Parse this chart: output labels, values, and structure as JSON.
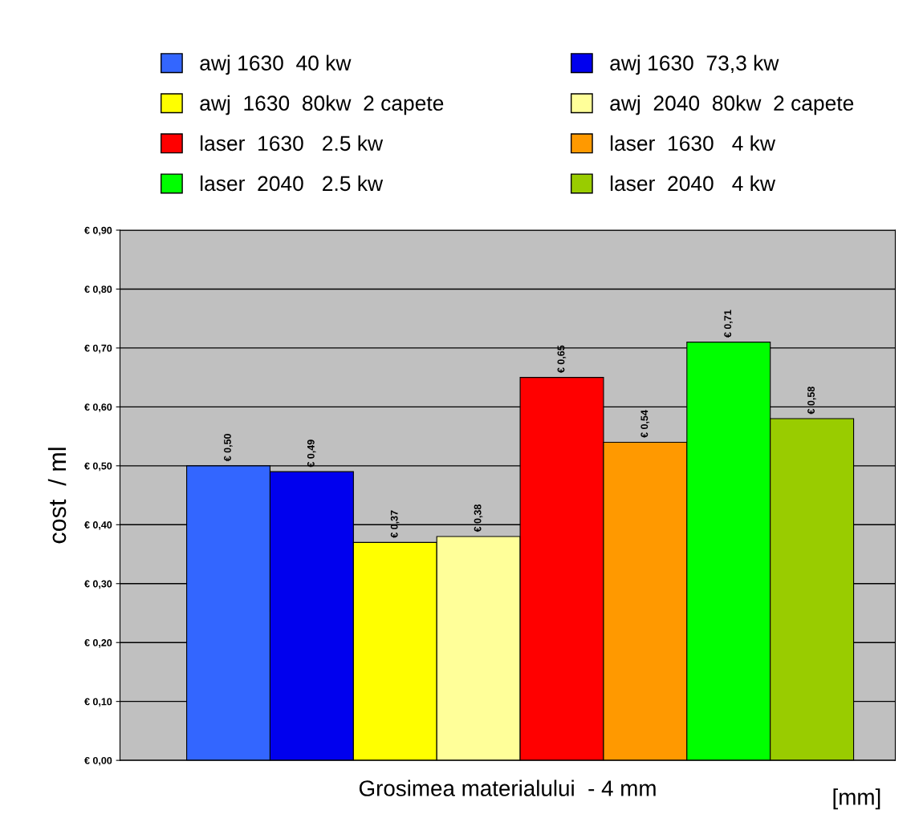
{
  "chart_data": {
    "type": "bar",
    "xlabel": "Grosimea materialului  - 4 mm",
    "ylabel": "cost  / ml",
    "annotations": [
      "[mm]"
    ],
    "categories": [
      null
    ],
    "series": [
      {
        "name": "awj 1630  40 kw",
        "color": "#3366ff",
        "values": [
          0.5
        ],
        "value_labels": [
          "€ 0,50"
        ]
      },
      {
        "name": "awj 1630  73,3 kw",
        "color": "#0000ee",
        "values": [
          0.49
        ],
        "value_labels": [
          "€ 0,49"
        ]
      },
      {
        "name": "awj  1630  80kw  2 capete",
        "color": "#ffff00",
        "values": [
          0.37
        ],
        "value_labels": [
          "€ 0,37"
        ]
      },
      {
        "name": "awj  2040  80kw  2 capete",
        "color": "#ffff99",
        "values": [
          0.38
        ],
        "value_labels": [
          "€ 0,38"
        ]
      },
      {
        "name": "laser  1630   2.5 kw",
        "color": "#ff0000",
        "values": [
          0.65
        ],
        "value_labels": [
          "€ 0,65"
        ]
      },
      {
        "name": "laser  1630   4 kw",
        "color": "#ff9900",
        "values": [
          0.54
        ],
        "value_labels": [
          "€ 0,54"
        ]
      },
      {
        "name": "laser  2040   2.5 kw",
        "color": "#00ff00",
        "values": [
          0.71
        ],
        "value_labels": [
          "€ 0,71"
        ]
      },
      {
        "name": "laser  2040   4 kw",
        "color": "#99cc00",
        "values": [
          0.58
        ],
        "value_labels": [
          "€ 0,58"
        ]
      }
    ],
    "ylim": [
      0,
      0.9
    ],
    "yticks": [
      {
        "value": 0,
        "label": "€ 0,00"
      },
      {
        "value": 0.1,
        "label": "€ 0,10"
      },
      {
        "value": 0.2,
        "label": "€ 0,20"
      },
      {
        "value": 0.3,
        "label": "€ 0,30"
      },
      {
        "value": 0.4,
        "label": "€ 0,40"
      },
      {
        "value": 0.5,
        "label": "€ 0,50"
      },
      {
        "value": 0.6,
        "label": "€ 0,60"
      },
      {
        "value": 0.7,
        "label": "€ 0,70"
      },
      {
        "value": 0.8,
        "label": "€ 0,80"
      },
      {
        "value": 0.9,
        "label": "€ 0,90"
      }
    ],
    "grid": "y",
    "legend": "top"
  }
}
